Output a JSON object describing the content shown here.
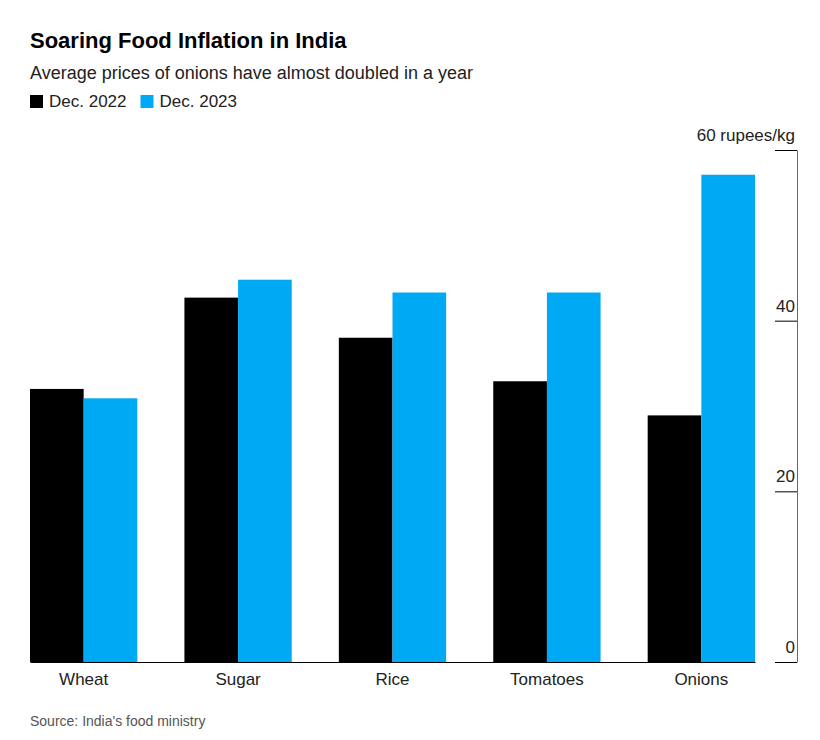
{
  "chart_data": {
    "type": "bar",
    "title": "Soaring Food Inflation in India",
    "subtitle": "Average prices of onions have almost doubled in a year",
    "source": "Source: India's food ministry",
    "categories": [
      "Wheat",
      "Sugar",
      "Rice",
      "Tomatoes",
      "Onions"
    ],
    "series": [
      {
        "name": "Dec. 2022",
        "color": "#000000",
        "values": [
          32.0,
          42.7,
          38.0,
          32.9,
          28.9
        ]
      },
      {
        "name": "Dec. 2023",
        "color": "#00a9f4",
        "values": [
          30.9,
          44.8,
          43.3,
          43.3,
          57.1
        ]
      }
    ],
    "ylim": [
      0,
      60
    ],
    "yticks": [
      0,
      20,
      40,
      {
        "value": 60,
        "label": "60 rupees/kg"
      }
    ],
    "legend": "top-left",
    "grid": false
  }
}
